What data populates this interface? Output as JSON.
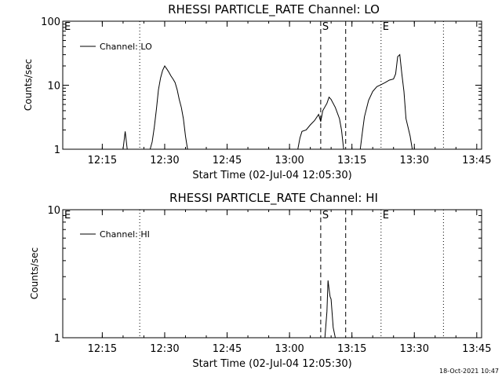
{
  "footer": {
    "timestamp": "18-Oct-2021 10:47"
  },
  "chart_data": [
    {
      "type": "line",
      "title": "RHESSI PARTICLE_RATE Channel: LO",
      "xlabel": "Start Time (02-Jul-04 12:05:30)",
      "ylabel": "Counts/sec",
      "x_unit": "minutes since 12:05:30",
      "x_ticks": [
        "12:15",
        "12:30",
        "12:45",
        "13:00",
        "13:15",
        "13:30",
        "13:45"
      ],
      "y_ticks": [
        "1",
        "10",
        "100"
      ],
      "ylim": [
        1,
        100
      ],
      "yscale": "log",
      "legend": {
        "label": "Channel: LO",
        "placement": "top-left"
      },
      "markers": [
        {
          "label": "E",
          "x": "12:05:30",
          "style": "dotted"
        },
        {
          "label": "",
          "x": "12:24:00",
          "style": "dotted"
        },
        {
          "label": "S",
          "x": "13:07:30",
          "style": "dashed"
        },
        {
          "label": "",
          "x": "13:13:30",
          "style": "dashed"
        },
        {
          "label": "E",
          "x": "13:22:00",
          "style": "dotted"
        },
        {
          "label": "",
          "x": "13:37:00",
          "style": "dotted"
        }
      ],
      "series": [
        {
          "name": "Channel: LO",
          "points": [
            [
              "12:20:00",
              1
            ],
            [
              "12:20:30",
              1.9
            ],
            [
              "12:21:00",
              1
            ],
            [
              "12:26:30",
              1
            ],
            [
              "12:27:00",
              1.3
            ],
            [
              "12:27:30",
              2.2
            ],
            [
              "12:28:00",
              4.2
            ],
            [
              "12:28:30",
              8.5
            ],
            [
              "12:29:00",
              13
            ],
            [
              "12:29:30",
              17
            ],
            [
              "12:30:00",
              20
            ],
            [
              "12:30:30",
              18
            ],
            [
              "12:31:00",
              16
            ],
            [
              "12:31:30",
              14
            ],
            [
              "12:32:00",
              12.5
            ],
            [
              "12:32:30",
              11
            ],
            [
              "12:33:00",
              8.5
            ],
            [
              "12:33:30",
              6
            ],
            [
              "12:34:00",
              4.5
            ],
            [
              "12:34:30",
              3
            ],
            [
              "12:35:00",
              1.6
            ],
            [
              "12:35:30",
              1
            ],
            [
              "13:02:00",
              1
            ],
            [
              "13:02:30",
              1.5
            ],
            [
              "13:03:00",
              1.9
            ],
            [
              "13:04:00",
              2
            ],
            [
              "13:05:00",
              2.4
            ],
            [
              "13:06:00",
              2.8
            ],
            [
              "13:07:00",
              3.5
            ],
            [
              "13:07:30",
              2.7
            ],
            [
              "13:08:00",
              4
            ],
            [
              "13:09:00",
              5.2
            ],
            [
              "13:09:30",
              6.5
            ],
            [
              "13:10:00",
              6
            ],
            [
              "13:11:00",
              4.5
            ],
            [
              "13:12:00",
              3
            ],
            [
              "13:12:30",
              2
            ],
            [
              "13:13:00",
              1
            ],
            [
              "13:17:00",
              1
            ],
            [
              "13:17:30",
              1.8
            ],
            [
              "13:18:00",
              3.2
            ],
            [
              "13:19:00",
              5.8
            ],
            [
              "13:20:00",
              8
            ],
            [
              "13:21:00",
              9.5
            ],
            [
              "13:22:00",
              10.2
            ],
            [
              "13:23:00",
              11
            ],
            [
              "13:24:00",
              12
            ],
            [
              "13:25:00",
              12.5
            ],
            [
              "13:25:30",
              15
            ],
            [
              "13:26:00",
              28
            ],
            [
              "13:26:30",
              30
            ],
            [
              "13:27:00",
              15
            ],
            [
              "13:27:30",
              8
            ],
            [
              "13:28:00",
              3
            ],
            [
              "13:29:00",
              1.6
            ],
            [
              "13:29:30",
              1
            ]
          ]
        }
      ]
    },
    {
      "type": "line",
      "title": "RHESSI PARTICLE_RATE Channel: HI",
      "xlabel": "Start Time (02-Jul-04 12:05:30)",
      "ylabel": "Counts/sec",
      "x_unit": "minutes since 12:05:30",
      "x_ticks": [
        "12:15",
        "12:30",
        "12:45",
        "13:00",
        "13:15",
        "13:30",
        "13:45"
      ],
      "y_ticks": [
        "1",
        "10"
      ],
      "ylim": [
        1,
        10
      ],
      "yscale": "log",
      "legend": {
        "label": "Channel: HI",
        "placement": "top-left"
      },
      "markers": [
        {
          "label": "E",
          "x": "12:05:30",
          "style": "dotted"
        },
        {
          "label": "",
          "x": "12:24:00",
          "style": "dotted"
        },
        {
          "label": "S",
          "x": "13:07:30",
          "style": "dashed"
        },
        {
          "label": "",
          "x": "13:13:30",
          "style": "dashed"
        },
        {
          "label": "E",
          "x": "13:22:00",
          "style": "dotted"
        },
        {
          "label": "",
          "x": "13:37:00",
          "style": "dotted"
        }
      ],
      "series": [
        {
          "name": "Channel: HI",
          "points": [
            [
              "13:08:30",
              1
            ],
            [
              "13:09:00",
              1.6
            ],
            [
              "13:09:15",
              2.8
            ],
            [
              "13:09:30",
              2.4
            ],
            [
              "13:09:45",
              2.1
            ],
            [
              "13:10:00",
              2.0
            ],
            [
              "13:10:30",
              1.2
            ],
            [
              "13:11:00",
              1
            ]
          ]
        }
      ]
    }
  ]
}
